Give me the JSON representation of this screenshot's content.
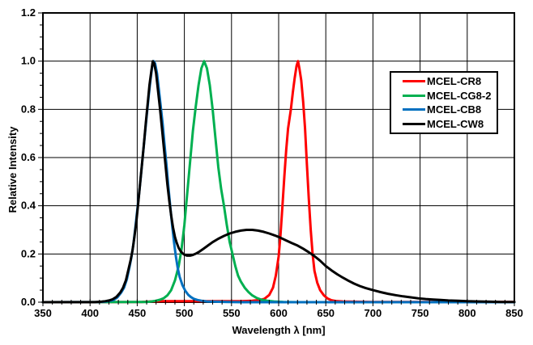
{
  "chart_data": {
    "type": "line",
    "title": "",
    "xlabel": "Wavelength λ [nm]",
    "ylabel": "Relative Intensity",
    "xlim": [
      350,
      850
    ],
    "ylim": [
      0,
      1.2
    ],
    "x_major_ticks": [
      350,
      400,
      450,
      500,
      550,
      600,
      650,
      700,
      750,
      800,
      850
    ],
    "x_minor_step": 10,
    "y_major_ticks": [
      "0.0",
      "0.2",
      "0.4",
      "0.6",
      "0.8",
      "1.0",
      "1.2"
    ],
    "y_minor_step": 0.05,
    "grid": "major-both",
    "grid_color": "#000000",
    "legend_position": "top-right",
    "series": [
      {
        "name": "MCEL-CR8",
        "color": "#FF0000",
        "peak_nm": 620,
        "points": [
          [
            350,
            0
          ],
          [
            455,
            0.001
          ],
          [
            465,
            0.003
          ],
          [
            475,
            0.004
          ],
          [
            560,
            0.004
          ],
          [
            572,
            0.006
          ],
          [
            580,
            0.009
          ],
          [
            585,
            0.014
          ],
          [
            590,
            0.03
          ],
          [
            594,
            0.06
          ],
          [
            597,
            0.11
          ],
          [
            600,
            0.19
          ],
          [
            602,
            0.28
          ],
          [
            604,
            0.4
          ],
          [
            606,
            0.52
          ],
          [
            608,
            0.63
          ],
          [
            610,
            0.72
          ],
          [
            613,
            0.8
          ],
          [
            615,
            0.87
          ],
          [
            617,
            0.93
          ],
          [
            619,
            0.98
          ],
          [
            620.5,
            1.0
          ],
          [
            622,
            0.97
          ],
          [
            624,
            0.92
          ],
          [
            626,
            0.83
          ],
          [
            628,
            0.72
          ],
          [
            630,
            0.57
          ],
          [
            632,
            0.43
          ],
          [
            634,
            0.3
          ],
          [
            636,
            0.2
          ],
          [
            638,
            0.13
          ],
          [
            641,
            0.08
          ],
          [
            644,
            0.05
          ],
          [
            648,
            0.028
          ],
          [
            652,
            0.015
          ],
          [
            656,
            0.008
          ],
          [
            660,
            0.005
          ],
          [
            668,
            0.003
          ],
          [
            680,
            0.002
          ],
          [
            700,
            0.001
          ],
          [
            850,
            0.001
          ]
        ]
      },
      {
        "name": "MCEL-CG8-2",
        "color": "#00B050",
        "peak_nm": 521,
        "points": [
          [
            350,
            0
          ],
          [
            455,
            0.001
          ],
          [
            460,
            0.001
          ],
          [
            465,
            0.003
          ],
          [
            470,
            0.006
          ],
          [
            474,
            0.01
          ],
          [
            478,
            0.016
          ],
          [
            482,
            0.028
          ],
          [
            486,
            0.05
          ],
          [
            490,
            0.09
          ],
          [
            494,
            0.15
          ],
          [
            497,
            0.22
          ],
          [
            500,
            0.32
          ],
          [
            503,
            0.45
          ],
          [
            506,
            0.58
          ],
          [
            509,
            0.71
          ],
          [
            512,
            0.81
          ],
          [
            515,
            0.9
          ],
          [
            518,
            0.97
          ],
          [
            521,
            1.0
          ],
          [
            524,
            0.97
          ],
          [
            527,
            0.9
          ],
          [
            530,
            0.8
          ],
          [
            533,
            0.68
          ],
          [
            536,
            0.56
          ],
          [
            539,
            0.47
          ],
          [
            542,
            0.4
          ],
          [
            545,
            0.32
          ],
          [
            548,
            0.25
          ],
          [
            551,
            0.2
          ],
          [
            554,
            0.15
          ],
          [
            557,
            0.11
          ],
          [
            560,
            0.085
          ],
          [
            564,
            0.06
          ],
          [
            568,
            0.042
          ],
          [
            572,
            0.028
          ],
          [
            577,
            0.017
          ],
          [
            582,
            0.01
          ],
          [
            588,
            0.006
          ],
          [
            595,
            0.003
          ],
          [
            605,
            0.001
          ],
          [
            620,
            0
          ],
          [
            850,
            0
          ]
        ]
      },
      {
        "name": "MCEL-CB8",
        "color": "#0070C0",
        "peak_nm": 467,
        "points": [
          [
            350,
            0
          ],
          [
            410,
            0.001
          ],
          [
            415,
            0.002
          ],
          [
            420,
            0.005
          ],
          [
            425,
            0.009
          ],
          [
            429,
            0.02
          ],
          [
            433,
            0.04
          ],
          [
            436,
            0.06
          ],
          [
            439,
            0.095
          ],
          [
            442,
            0.15
          ],
          [
            444,
            0.19
          ],
          [
            446,
            0.24
          ],
          [
            448,
            0.31
          ],
          [
            450,
            0.38
          ],
          [
            452,
            0.45
          ],
          [
            454,
            0.53
          ],
          [
            456,
            0.61
          ],
          [
            458,
            0.69
          ],
          [
            460,
            0.77
          ],
          [
            462,
            0.85
          ],
          [
            464,
            0.92
          ],
          [
            466,
            0.98
          ],
          [
            467.5,
            1.0
          ],
          [
            469,
            0.99
          ],
          [
            471,
            0.95
          ],
          [
            473,
            0.88
          ],
          [
            475,
            0.81
          ],
          [
            477,
            0.74
          ],
          [
            479,
            0.65
          ],
          [
            481,
            0.57
          ],
          [
            483,
            0.48
          ],
          [
            485,
            0.4
          ],
          [
            487,
            0.32
          ],
          [
            489,
            0.25
          ],
          [
            491,
            0.19
          ],
          [
            493,
            0.14
          ],
          [
            495,
            0.105
          ],
          [
            498,
            0.07
          ],
          [
            501,
            0.047
          ],
          [
            504,
            0.031
          ],
          [
            507,
            0.021
          ],
          [
            510,
            0.014
          ],
          [
            514,
            0.009
          ],
          [
            518,
            0.006
          ],
          [
            524,
            0.003
          ],
          [
            532,
            0.002
          ],
          [
            545,
            0.001
          ],
          [
            560,
            0
          ],
          [
            850,
            0
          ]
        ]
      },
      {
        "name": "MCEL-CW8",
        "color": "#000000",
        "peak_nm": 466,
        "points": [
          [
            350,
            0
          ],
          [
            405,
            0
          ],
          [
            412,
            0.002
          ],
          [
            416,
            0.004
          ],
          [
            420,
            0.007
          ],
          [
            424,
            0.012
          ],
          [
            428,
            0.022
          ],
          [
            432,
            0.04
          ],
          [
            435,
            0.06
          ],
          [
            438,
            0.09
          ],
          [
            441,
            0.14
          ],
          [
            443,
            0.175
          ],
          [
            445,
            0.215
          ],
          [
            447,
            0.27
          ],
          [
            449,
            0.33
          ],
          [
            451,
            0.41
          ],
          [
            453,
            0.49
          ],
          [
            455,
            0.57
          ],
          [
            457,
            0.65
          ],
          [
            459,
            0.74
          ],
          [
            461,
            0.82
          ],
          [
            463,
            0.9
          ],
          [
            465,
            0.96
          ],
          [
            466.5,
            1.0
          ],
          [
            468,
            0.99
          ],
          [
            470,
            0.95
          ],
          [
            472,
            0.88
          ],
          [
            474,
            0.81
          ],
          [
            476,
            0.73
          ],
          [
            478,
            0.65
          ],
          [
            480,
            0.57
          ],
          [
            482,
            0.49
          ],
          [
            484,
            0.42
          ],
          [
            486,
            0.36
          ],
          [
            488,
            0.31
          ],
          [
            490,
            0.27
          ],
          [
            492,
            0.245
          ],
          [
            494,
            0.225
          ],
          [
            496,
            0.212
          ],
          [
            498,
            0.203
          ],
          [
            500,
            0.197
          ],
          [
            503,
            0.193
          ],
          [
            506,
            0.193
          ],
          [
            509,
            0.196
          ],
          [
            512,
            0.201
          ],
          [
            516,
            0.21
          ],
          [
            520,
            0.221
          ],
          [
            525,
            0.235
          ],
          [
            530,
            0.249
          ],
          [
            536,
            0.263
          ],
          [
            542,
            0.275
          ],
          [
            548,
            0.285
          ],
          [
            554,
            0.292
          ],
          [
            560,
            0.297
          ],
          [
            566,
            0.3
          ],
          [
            572,
            0.3
          ],
          [
            578,
            0.297
          ],
          [
            584,
            0.292
          ],
          [
            590,
            0.285
          ],
          [
            596,
            0.277
          ],
          [
            602,
            0.267
          ],
          [
            608,
            0.256
          ],
          [
            614,
            0.245
          ],
          [
            620,
            0.235
          ],
          [
            626,
            0.222
          ],
          [
            632,
            0.207
          ],
          [
            638,
            0.191
          ],
          [
            644,
            0.172
          ],
          [
            650,
            0.15
          ],
          [
            656,
            0.132
          ],
          [
            662,
            0.116
          ],
          [
            668,
            0.102
          ],
          [
            674,
            0.089
          ],
          [
            680,
            0.077
          ],
          [
            686,
            0.067
          ],
          [
            692,
            0.059
          ],
          [
            700,
            0.05
          ],
          [
            708,
            0.042
          ],
          [
            716,
            0.035
          ],
          [
            724,
            0.029
          ],
          [
            732,
            0.024
          ],
          [
            740,
            0.02
          ],
          [
            748,
            0.016
          ],
          [
            756,
            0.013
          ],
          [
            764,
            0.011
          ],
          [
            772,
            0.009
          ],
          [
            780,
            0.007
          ],
          [
            790,
            0.006
          ],
          [
            800,
            0.004
          ],
          [
            812,
            0.003
          ],
          [
            824,
            0.002
          ],
          [
            836,
            0.001
          ],
          [
            850,
            0.001
          ]
        ]
      }
    ]
  }
}
